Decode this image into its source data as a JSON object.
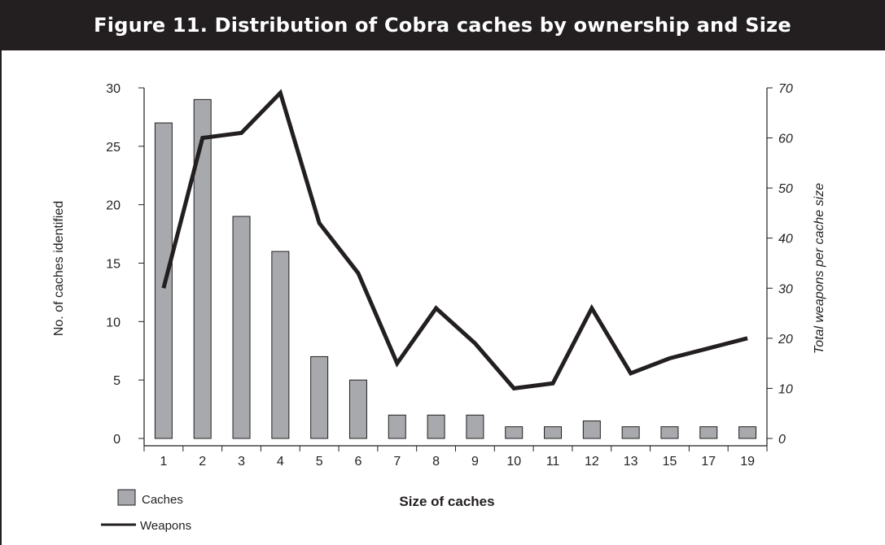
{
  "title": "Figure 11. Distribution of Cobra caches by ownership and Size",
  "colors": {
    "bar_fill": "#a7a9ac",
    "line": "#231f20",
    "title_bg": "#231f20"
  },
  "chart_data": {
    "type": "bar",
    "categories": [
      "1",
      "2",
      "3",
      "4",
      "5",
      "6",
      "7",
      "8",
      "9",
      "10",
      "11",
      "12",
      "13",
      "15",
      "17",
      "19"
    ],
    "xlabel": "Size of caches",
    "ylabel": "No. of caches identified",
    "y2label": "Total weapons per cache size",
    "ylim": [
      0,
      30
    ],
    "y2lim": [
      0,
      70
    ],
    "yticks": [
      0,
      5,
      10,
      15,
      20,
      25,
      30
    ],
    "y2ticks": [
      0,
      10,
      20,
      30,
      40,
      50,
      60,
      70
    ],
    "series": [
      {
        "name": "Caches",
        "type": "bar",
        "axis": "left",
        "values": [
          27,
          29,
          19,
          16,
          7,
          5,
          2,
          2,
          2,
          1,
          1,
          1.5,
          1,
          1,
          1,
          1
        ]
      },
      {
        "name": "Weapons",
        "type": "line",
        "axis": "right",
        "values": [
          30,
          60,
          61,
          69,
          43,
          33,
          15,
          26,
          19,
          10,
          11,
          26,
          13,
          16,
          18,
          20
        ]
      }
    ],
    "legend": [
      "Caches",
      "Weapons"
    ],
    "legend_position": "bottom-left",
    "grid": false
  }
}
